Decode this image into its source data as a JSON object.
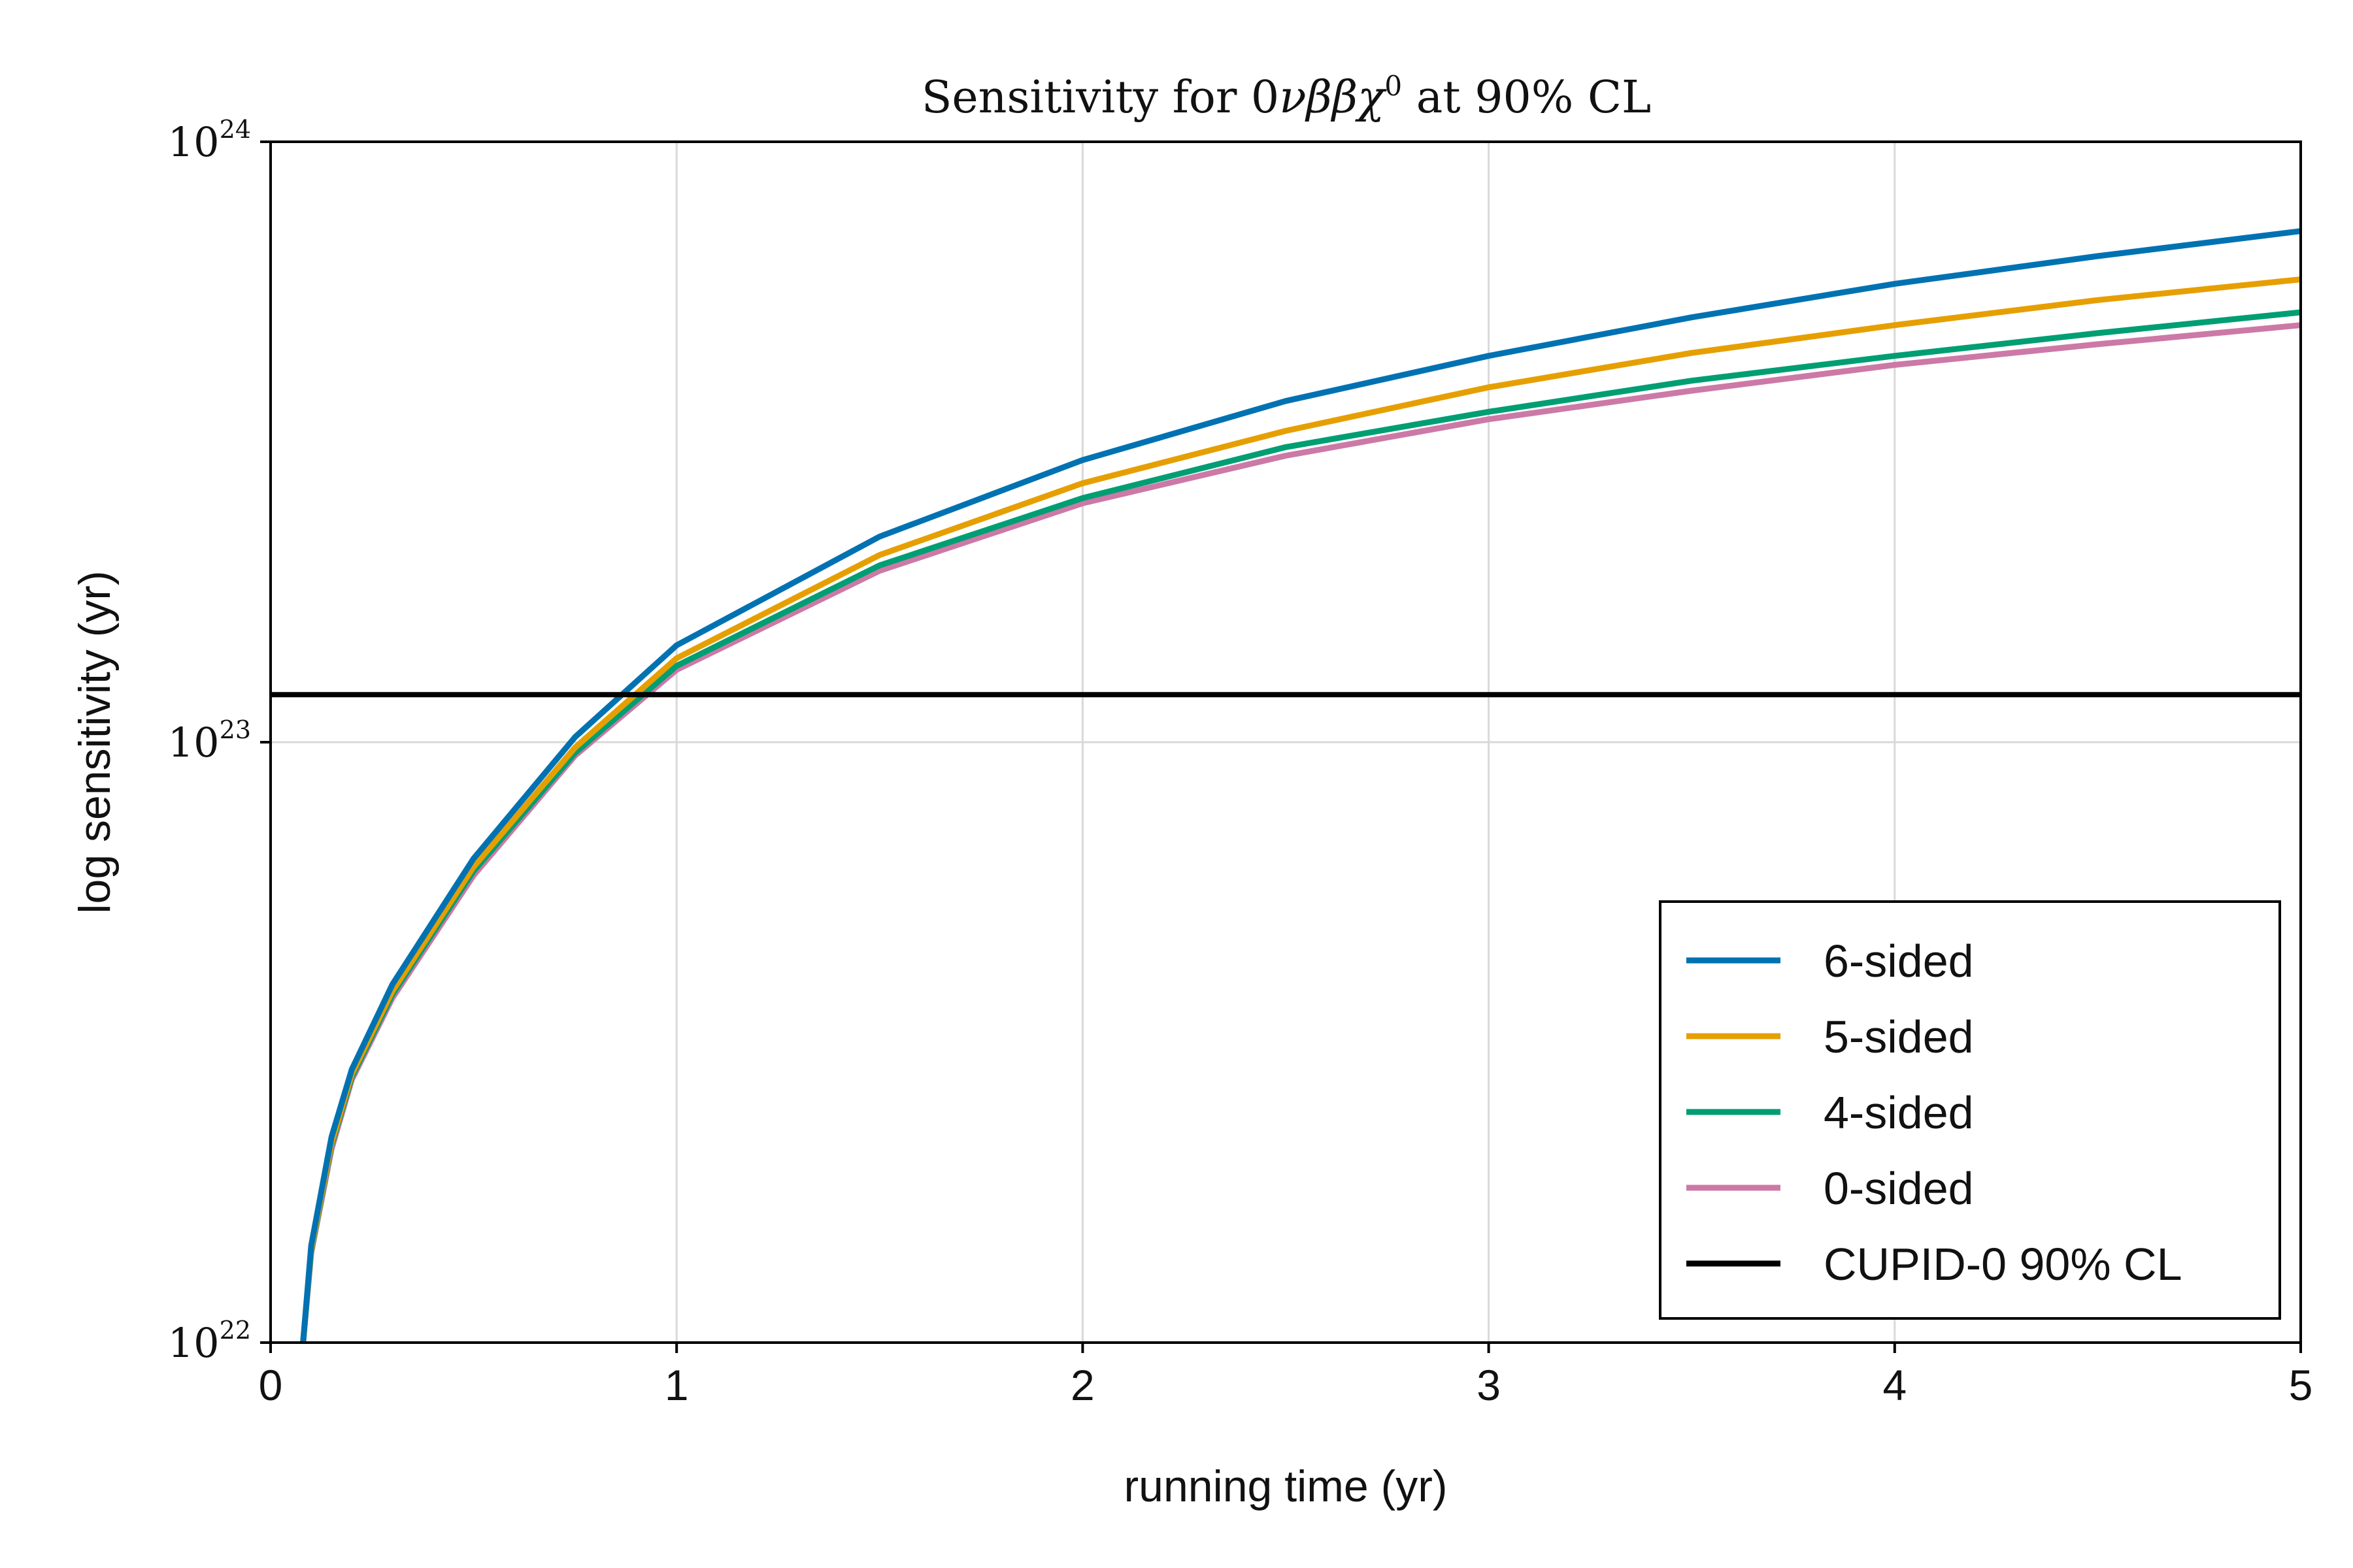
{
  "chart_data": {
    "type": "line",
    "title": "Sensitivity for 0νββχ⁰ at 90% CL",
    "title_parts": {
      "prefix": "Sensitivity for 0",
      "symbols": "νββχ",
      "superscript": "0",
      "suffix": " at 90% CL"
    },
    "xlabel": "running time (yr)",
    "ylabel": "log sensitivity (yr)",
    "xlim": [
      0,
      5
    ],
    "ylim": [
      1e+22,
      1e+24
    ],
    "yscale": "log",
    "grid": true,
    "legend_position": "bottom-right",
    "x_ticks": [
      "0",
      "1",
      "2",
      "3",
      "4",
      "5"
    ],
    "y_ticks": [
      {
        "base": "10",
        "exp": "22",
        "value": 1e+22
      },
      {
        "base": "10",
        "exp": "23",
        "value": 1e+23
      },
      {
        "base": "10",
        "exp": "24",
        "value": 1e+24
      }
    ],
    "x": [
      0.08,
      0.1,
      0.15,
      0.2,
      0.3,
      0.5,
      0.75,
      1.0,
      1.5,
      2.0,
      2.5,
      3.0,
      3.5,
      4.0,
      4.5,
      5.0
    ],
    "series": [
      {
        "name": "6-sided",
        "color": "#0072b2",
        "values": [
          1e+22,
          1.45e+22,
          2.2e+22,
          2.85e+22,
          3.95e+22,
          6.4e+22,
          1.02e+23,
          1.45e+23,
          2.2e+23,
          2.95e+23,
          3.7e+23,
          4.4e+23,
          5.1e+23,
          5.8e+23,
          6.45e+23,
          7.1e+23
        ]
      },
      {
        "name": "5-sided",
        "color": "#e69f00",
        "values": [
          1e+22,
          1.43e+22,
          2.15e+22,
          2.8e+22,
          3.85e+22,
          6.2e+22,
          9.8e+22,
          1.38e+23,
          2.05e+23,
          2.7e+23,
          3.3e+23,
          3.9e+23,
          4.45e+23,
          4.95e+23,
          5.45e+23,
          5.9e+23
        ]
      },
      {
        "name": "4-sided",
        "color": "#009e73",
        "values": [
          1e+22,
          1.42e+22,
          2.13e+22,
          2.77e+22,
          3.8e+22,
          6.1e+22,
          9.6e+22,
          1.34e+23,
          1.97e+23,
          2.55e+23,
          3.1e+23,
          3.55e+23,
          4e+23,
          4.4e+23,
          4.8e+23,
          5.2e+23
        ]
      },
      {
        "name": "0-sided",
        "color": "#cc79a7",
        "values": [
          1e+22,
          1.41e+22,
          2.1e+22,
          2.74e+22,
          3.75e+22,
          6e+22,
          9.5e+22,
          1.32e+23,
          1.93e+23,
          2.5e+23,
          3e+23,
          3.45e+23,
          3.85e+23,
          4.25e+23,
          4.6e+23,
          4.95e+23
        ]
      }
    ],
    "reference_line": {
      "name": "CUPID-0 90% CL",
      "color": "#000000",
      "value": 1.2e+23
    }
  }
}
